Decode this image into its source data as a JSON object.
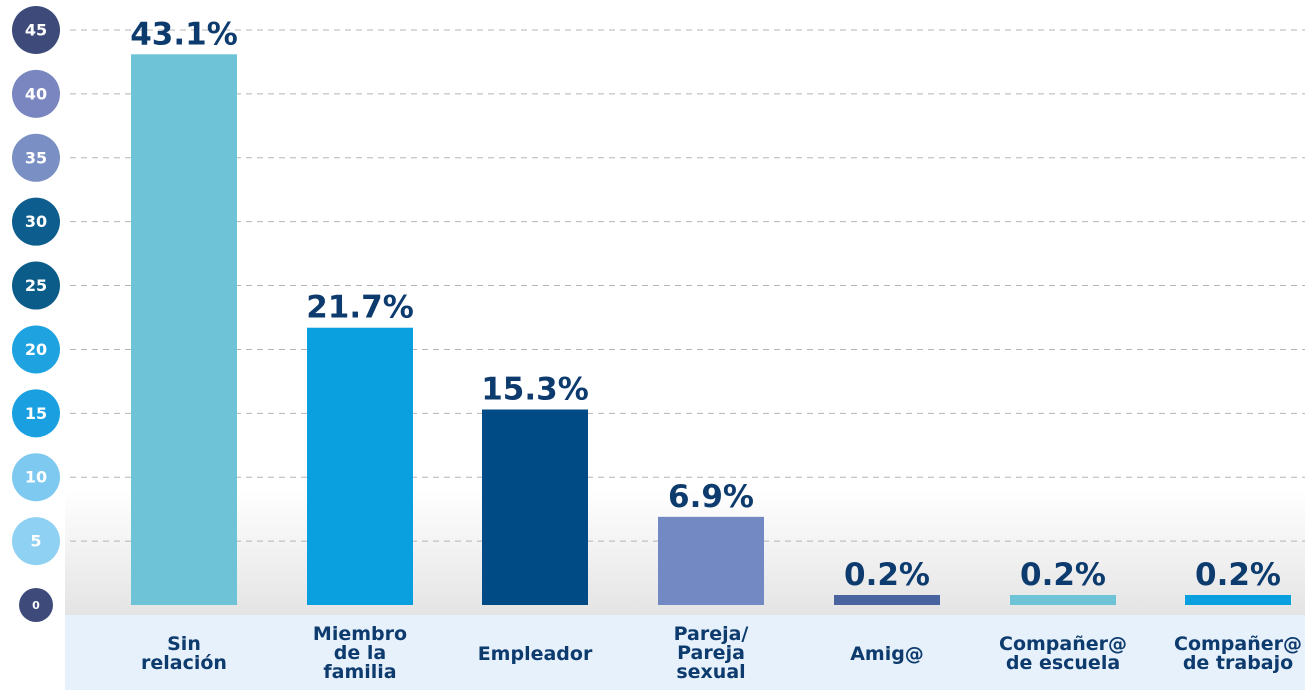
{
  "chart_data": {
    "type": "bar",
    "categories": [
      "Sin\nrelación",
      "Miembro\nde la\nfamilia",
      "Empleador",
      "Pareja/\nPareja\nsexual",
      "Amig@",
      "Compañer@\nde escuela",
      "Compañer@\nde trabajo"
    ],
    "values": [
      43.1,
      21.7,
      15.3,
      6.9,
      0.2,
      0.2,
      0.2
    ],
    "value_labels": [
      "43.1%",
      "21.7%",
      "15.3%",
      "6.9%",
      "0.2%",
      "0.2%",
      "0.2%"
    ],
    "colors": [
      "#6ec3d6",
      "#0aa0e0",
      "#004a86",
      "#7389c4",
      "#4a64a0",
      "#6ec3d6",
      "#0aa0e0"
    ],
    "ylim": [
      0,
      45
    ],
    "yticks": [
      0,
      5,
      10,
      15,
      20,
      25,
      30,
      35,
      40,
      45
    ],
    "ytick_colors": [
      "#3d4a7a",
      "#8ed1f2",
      "#7dc9ef",
      "#1aa0e0",
      "#1fa3e0",
      "#0c5c8a",
      "#0d5e8e",
      "#7a8fc4",
      "#7a86c0",
      "#3d4a7a"
    ],
    "grid": true
  }
}
